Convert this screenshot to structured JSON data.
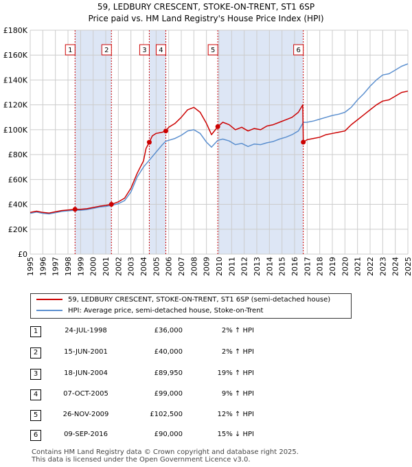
{
  "title_line1": "59, LEDBURY CRESCENT, STOKE-ON-TRENT, ST1 6SP",
  "title_line2": "Price paid vs. HM Land Registry's House Price Index (HPI)",
  "colors": {
    "property": "#cc0000",
    "hpi": "#5b8fcf",
    "band": "#dde6f5",
    "grid": "#cccccc",
    "vline": "#cc0000"
  },
  "chart_data": {
    "type": "line",
    "xlim": [
      1995,
      2025
    ],
    "ylim": [
      0,
      180000
    ],
    "y_ticks": [
      0,
      20000,
      40000,
      60000,
      80000,
      100000,
      120000,
      140000,
      160000,
      180000
    ],
    "y_tick_labels": [
      "£0",
      "£20K",
      "£40K",
      "£60K",
      "£80K",
      "£100K",
      "£120K",
      "£140K",
      "£160K",
      "£180K"
    ],
    "x_ticks": [
      1995,
      1996,
      1997,
      1998,
      1999,
      2000,
      2001,
      2002,
      2003,
      2004,
      2005,
      2006,
      2007,
      2008,
      2009,
      2010,
      2011,
      2012,
      2013,
      2014,
      2015,
      2016,
      2017,
      2018,
      2019,
      2020,
      2021,
      2022,
      2023,
      2024,
      2025
    ],
    "grid": true,
    "legend": "below",
    "series": [
      {
        "name": "59, LEDBURY CRESCENT, STOKE-ON-TRENT, ST1 6SP (semi-detached house)",
        "color": "#cc0000",
        "points": [
          [
            1995,
            33500
          ],
          [
            1995.5,
            34500
          ],
          [
            1996,
            33500
          ],
          [
            1996.5,
            33000
          ],
          [
            1997,
            34000
          ],
          [
            1997.5,
            35000
          ],
          [
            1998,
            35500
          ],
          [
            1998.56,
            36000
          ],
          [
            1999,
            36000
          ],
          [
            1999.5,
            36500
          ],
          [
            2000,
            37500
          ],
          [
            2000.5,
            38500
          ],
          [
            2001,
            39200
          ],
          [
            2001.45,
            40000
          ],
          [
            2002,
            42000
          ],
          [
            2002.5,
            45000
          ],
          [
            2003,
            53000
          ],
          [
            2003.5,
            65000
          ],
          [
            2004,
            75000
          ],
          [
            2004.2,
            85000
          ],
          [
            2004.46,
            89950
          ],
          [
            2004.7,
            95000
          ],
          [
            2005,
            97000
          ],
          [
            2005.5,
            98000
          ],
          [
            2005.77,
            99000
          ],
          [
            2006,
            102000
          ],
          [
            2006.5,
            105000
          ],
          [
            2007,
            110000
          ],
          [
            2007.5,
            116000
          ],
          [
            2008,
            118000
          ],
          [
            2008.5,
            114000
          ],
          [
            2009,
            105000
          ],
          [
            2009.4,
            96000
          ],
          [
            2009.9,
            102500
          ],
          [
            2010.3,
            106000
          ],
          [
            2010.8,
            104000
          ],
          [
            2011.3,
            100000
          ],
          [
            2011.8,
            102000
          ],
          [
            2012.3,
            99000
          ],
          [
            2012.8,
            101000
          ],
          [
            2013.3,
            100000
          ],
          [
            2013.8,
            103000
          ],
          [
            2014.3,
            104000
          ],
          [
            2014.8,
            106000
          ],
          [
            2015.3,
            108000
          ],
          [
            2015.8,
            110000
          ],
          [
            2016.3,
            114000
          ],
          [
            2016.65,
            120000
          ],
          [
            2016.69,
            90000
          ],
          [
            2017,
            92000
          ],
          [
            2017.5,
            93000
          ],
          [
            2018,
            94000
          ],
          [
            2018.5,
            96000
          ],
          [
            2019,
            97000
          ],
          [
            2019.5,
            98000
          ],
          [
            2020,
            99000
          ],
          [
            2020.5,
            104000
          ],
          [
            2021,
            108000
          ],
          [
            2021.5,
            112000
          ],
          [
            2022,
            116000
          ],
          [
            2022.5,
            120000
          ],
          [
            2023,
            123000
          ],
          [
            2023.5,
            124000
          ],
          [
            2024,
            127000
          ],
          [
            2024.5,
            130000
          ],
          [
            2025,
            131000
          ]
        ]
      },
      {
        "name": "HPI: Average price, semi-detached house, Stoke-on-Trent",
        "color": "#5b8fcf",
        "points": [
          [
            1995,
            32800
          ],
          [
            1995.5,
            33800
          ],
          [
            1996,
            32800
          ],
          [
            1996.5,
            32300
          ],
          [
            1997,
            33300
          ],
          [
            1997.5,
            34300
          ],
          [
            1998,
            34800
          ],
          [
            1998.56,
            35300
          ],
          [
            1999,
            35300
          ],
          [
            1999.5,
            35800
          ],
          [
            2000,
            36800
          ],
          [
            2000.5,
            37800
          ],
          [
            2001,
            38400
          ],
          [
            2001.45,
            39200
          ],
          [
            2002,
            40500
          ],
          [
            2002.5,
            43000
          ],
          [
            2003,
            50000
          ],
          [
            2003.5,
            62000
          ],
          [
            2004,
            70000
          ],
          [
            2004.46,
            75500
          ],
          [
            2005,
            82000
          ],
          [
            2005.5,
            88000
          ],
          [
            2005.77,
            90800
          ],
          [
            2006,
            91500
          ],
          [
            2006.5,
            93000
          ],
          [
            2007,
            95500
          ],
          [
            2007.5,
            99000
          ],
          [
            2008,
            100000
          ],
          [
            2008.5,
            97000
          ],
          [
            2009,
            90000
          ],
          [
            2009.4,
            86000
          ],
          [
            2009.9,
            91500
          ],
          [
            2010.3,
            92500
          ],
          [
            2010.8,
            91000
          ],
          [
            2011.3,
            88000
          ],
          [
            2011.8,
            89000
          ],
          [
            2012.3,
            86500
          ],
          [
            2012.8,
            88500
          ],
          [
            2013.3,
            88000
          ],
          [
            2013.8,
            89500
          ],
          [
            2014.3,
            90500
          ],
          [
            2014.8,
            92500
          ],
          [
            2015.3,
            94000
          ],
          [
            2015.8,
            96000
          ],
          [
            2016.3,
            99000
          ],
          [
            2016.69,
            105900
          ],
          [
            2017,
            106000
          ],
          [
            2017.5,
            107000
          ],
          [
            2018,
            108500
          ],
          [
            2018.5,
            110000
          ],
          [
            2019,
            111500
          ],
          [
            2019.5,
            112500
          ],
          [
            2020,
            114000
          ],
          [
            2020.5,
            118000
          ],
          [
            2021,
            124000
          ],
          [
            2021.5,
            129000
          ],
          [
            2022,
            135000
          ],
          [
            2022.5,
            140000
          ],
          [
            2023,
            144000
          ],
          [
            2023.5,
            145000
          ],
          [
            2024,
            148000
          ],
          [
            2024.5,
            151000
          ],
          [
            2025,
            153000
          ]
        ]
      }
    ],
    "sales": [
      {
        "label": "1",
        "x": 1998.56,
        "y": 36000
      },
      {
        "label": "2",
        "x": 2001.45,
        "y": 40000
      },
      {
        "label": "3",
        "x": 2004.46,
        "y": 89950
      },
      {
        "label": "4",
        "x": 2005.77,
        "y": 99000
      },
      {
        "label": "5",
        "x": 2009.9,
        "y": 102500
      },
      {
        "label": "6",
        "x": 2016.69,
        "y": 90000
      }
    ],
    "bands": [
      [
        1998.56,
        2001.45
      ],
      [
        2004.46,
        2005.77
      ],
      [
        2009.9,
        2016.69
      ]
    ]
  },
  "legend_items": [
    {
      "label": "59, LEDBURY CRESCENT, STOKE-ON-TRENT, ST1 6SP (semi-detached house)",
      "color": "#cc0000"
    },
    {
      "label": "HPI: Average price, semi-detached house, Stoke-on-Trent",
      "color": "#5b8fcf"
    }
  ],
  "transactions": [
    {
      "num": "1",
      "date": "24-JUL-1998",
      "price": "£36,000",
      "hpi": "2% ↑ HPI"
    },
    {
      "num": "2",
      "date": "15-JUN-2001",
      "price": "£40,000",
      "hpi": "2% ↑ HPI"
    },
    {
      "num": "3",
      "date": "18-JUN-2004",
      "price": "£89,950",
      "hpi": "19% ↑ HPI"
    },
    {
      "num": "4",
      "date": "07-OCT-2005",
      "price": "£99,000",
      "hpi": "9% ↑ HPI"
    },
    {
      "num": "5",
      "date": "26-NOV-2009",
      "price": "£102,500",
      "hpi": "12% ↑ HPI"
    },
    {
      "num": "6",
      "date": "09-SEP-2016",
      "price": "£90,000",
      "hpi": "15% ↓ HPI"
    }
  ],
  "footer_line1": "Contains HM Land Registry data © Crown copyright and database right 2025.",
  "footer_line2": "This data is licensed under the Open Government Licence v3.0."
}
